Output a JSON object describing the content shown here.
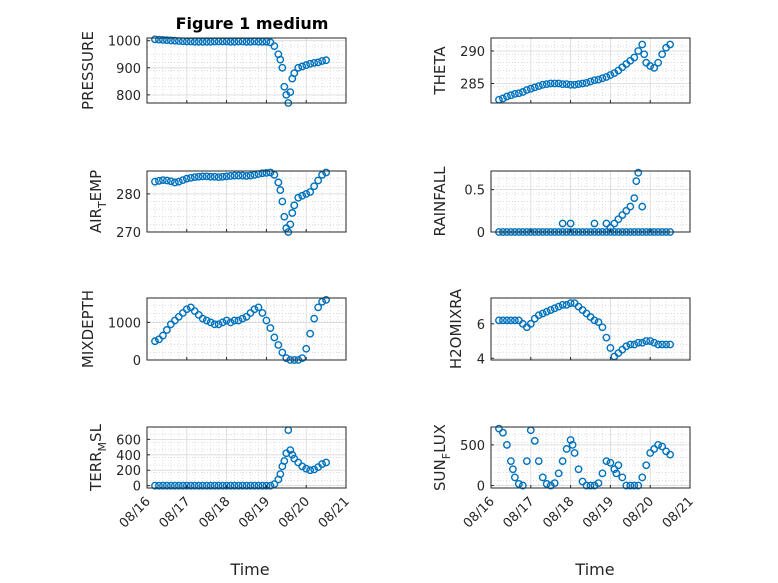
{
  "figure": {
    "title": "Figure 1 medium",
    "xlabel": "Time",
    "xtick_labels": [
      "08/16",
      "08/17",
      "08/18",
      "08/19",
      "08/20",
      "08/21"
    ],
    "marker_color": "#0072BD"
  },
  "chart_data": [
    {
      "type": "scatter",
      "ylabel_main": "PRESSURE",
      "ylabel_sub": "",
      "xlim": [
        0,
        5
      ],
      "ylim": [
        770,
        1010
      ],
      "yticks": [
        800,
        900,
        1000
      ],
      "grid": true,
      "x": [
        0.2,
        0.3,
        0.4,
        0.5,
        0.6,
        0.7,
        0.8,
        0.9,
        1.0,
        1.1,
        1.2,
        1.3,
        1.4,
        1.5,
        1.6,
        1.7,
        1.8,
        1.9,
        2.0,
        2.1,
        2.2,
        2.3,
        2.4,
        2.5,
        2.6,
        2.7,
        2.8,
        2.9,
        3.0,
        3.1,
        3.2,
        3.3,
        3.35,
        3.4,
        3.45,
        3.5,
        3.55,
        3.6,
        3.65,
        3.7,
        3.8,
        3.9,
        4.0,
        4.1,
        4.2,
        4.3,
        4.4,
        4.5
      ],
      "y": [
        1005,
        1004,
        1003,
        1002,
        1001,
        1000,
        999,
        998,
        997,
        997,
        996,
        996,
        996,
        996,
        996,
        997,
        997,
        997,
        997,
        996,
        996,
        997,
        997,
        996,
        996,
        997,
        996,
        996,
        996,
        994,
        980,
        950,
        930,
        900,
        830,
        800,
        770,
        810,
        860,
        880,
        900,
        905,
        910,
        915,
        918,
        920,
        925,
        928
      ]
    },
    {
      "type": "scatter",
      "ylabel_main": "THETA",
      "ylabel_sub": "",
      "xlim": [
        0,
        5
      ],
      "ylim": [
        282,
        292
      ],
      "yticks": [
        285,
        290
      ],
      "grid": true,
      "x": [
        0.2,
        0.3,
        0.4,
        0.5,
        0.6,
        0.7,
        0.8,
        0.9,
        1.0,
        1.1,
        1.2,
        1.3,
        1.4,
        1.5,
        1.6,
        1.7,
        1.8,
        1.9,
        2.0,
        2.1,
        2.2,
        2.3,
        2.4,
        2.5,
        2.6,
        2.7,
        2.8,
        2.9,
        3.0,
        3.1,
        3.2,
        3.3,
        3.4,
        3.5,
        3.6,
        3.7,
        3.8,
        3.85,
        3.9,
        4.0,
        4.1,
        4.2,
        4.3,
        4.4,
        4.5
      ],
      "y": [
        282.5,
        282.7,
        283.0,
        283.2,
        283.4,
        283.5,
        283.7,
        284.0,
        284.2,
        284.4,
        284.6,
        284.8,
        284.9,
        285.0,
        285.0,
        285.0,
        284.9,
        284.9,
        284.8,
        284.8,
        284.9,
        285.0,
        285.1,
        285.3,
        285.5,
        285.6,
        285.8,
        286.0,
        286.3,
        286.6,
        287.0,
        287.5,
        288.0,
        288.5,
        289.0,
        290.0,
        291.0,
        289.5,
        288.2,
        287.7,
        287.4,
        288.2,
        289.5,
        290.5,
        291.0
      ]
    },
    {
      "type": "scatter",
      "ylabel_main": "AIR",
      "ylabel_sub": "T",
      "ylabel_tail": "EMP",
      "xlim": [
        0,
        5
      ],
      "ylim": [
        270,
        286
      ],
      "yticks": [
        270,
        280
      ],
      "grid": true,
      "x": [
        0.2,
        0.3,
        0.4,
        0.5,
        0.6,
        0.7,
        0.8,
        0.9,
        1.0,
        1.1,
        1.2,
        1.3,
        1.4,
        1.5,
        1.6,
        1.7,
        1.8,
        1.9,
        2.0,
        2.1,
        2.2,
        2.3,
        2.4,
        2.5,
        2.6,
        2.7,
        2.8,
        2.9,
        3.0,
        3.1,
        3.2,
        3.3,
        3.35,
        3.4,
        3.45,
        3.5,
        3.55,
        3.6,
        3.65,
        3.7,
        3.8,
        3.9,
        4.0,
        4.1,
        4.2,
        4.3,
        4.4,
        4.5
      ],
      "y": [
        283.2,
        283.4,
        283.6,
        283.5,
        283.3,
        283.0,
        283.2,
        283.6,
        284.0,
        284.2,
        284.4,
        284.5,
        284.6,
        284.6,
        284.5,
        284.5,
        284.4,
        284.5,
        284.6,
        284.7,
        284.8,
        284.8,
        284.8,
        284.7,
        284.8,
        285.0,
        285.2,
        285.4,
        285.5,
        285.6,
        285.0,
        283.0,
        281.0,
        278.0,
        274.0,
        271.0,
        270.0,
        272.0,
        275.0,
        277.0,
        279.0,
        279.5,
        280.0,
        280.5,
        282.0,
        283.5,
        285.0,
        285.6
      ]
    },
    {
      "type": "scatter",
      "ylabel_main": "RAINFALL",
      "ylabel_sub": "",
      "xlim": [
        0,
        5
      ],
      "ylim": [
        0,
        0.72
      ],
      "yticks": [
        0,
        0.5
      ],
      "grid": true,
      "x": [
        0.2,
        0.3,
        0.4,
        0.5,
        0.6,
        0.7,
        0.8,
        0.9,
        1.0,
        1.1,
        1.2,
        1.3,
        1.4,
        1.5,
        1.6,
        1.7,
        1.8,
        1.9,
        2.0,
        2.1,
        2.2,
        2.3,
        2.4,
        2.5,
        2.6,
        2.7,
        2.8,
        2.9,
        3.0,
        3.1,
        3.2,
        3.3,
        3.4,
        3.5,
        3.6,
        3.7,
        3.8,
        3.9,
        4.0,
        4.1,
        4.2,
        4.3,
        4.4,
        4.5,
        1.8,
        2.0,
        2.6,
        2.9,
        3.0,
        3.1,
        3.2,
        3.3,
        3.4,
        3.5,
        3.6,
        3.65,
        3.7,
        3.8
      ],
      "y": [
        0,
        0,
        0,
        0,
        0,
        0,
        0,
        0,
        0,
        0,
        0,
        0,
        0,
        0,
        0,
        0,
        0,
        0,
        0,
        0,
        0,
        0,
        0,
        0,
        0,
        0,
        0,
        0,
        0,
        0,
        0,
        0,
        0,
        0,
        0,
        0,
        0,
        0,
        0,
        0,
        0,
        0,
        0,
        0,
        0.1,
        0.1,
        0.1,
        0.1,
        0.05,
        0.1,
        0.15,
        0.2,
        0.25,
        0.3,
        0.4,
        0.6,
        0.7,
        0.3
      ]
    },
    {
      "type": "scatter",
      "ylabel_main": "MIXDEPTH",
      "ylabel_sub": "",
      "xlim": [
        0,
        5
      ],
      "ylim": [
        0,
        1650
      ],
      "yticks": [
        0,
        1000
      ],
      "grid": true,
      "x": [
        0.2,
        0.3,
        0.4,
        0.5,
        0.6,
        0.7,
        0.8,
        0.9,
        1.0,
        1.1,
        1.2,
        1.3,
        1.4,
        1.5,
        1.6,
        1.7,
        1.8,
        1.9,
        2.0,
        2.1,
        2.2,
        2.3,
        2.4,
        2.5,
        2.6,
        2.7,
        2.8,
        2.9,
        3.0,
        3.1,
        3.2,
        3.3,
        3.4,
        3.5,
        3.6,
        3.7,
        3.8,
        3.9,
        4.0,
        4.1,
        4.2,
        4.3,
        4.4,
        4.5
      ],
      "y": [
        500,
        550,
        650,
        800,
        950,
        1050,
        1150,
        1250,
        1350,
        1400,
        1300,
        1200,
        1100,
        1050,
        1000,
        950,
        950,
        1000,
        1050,
        1000,
        1050,
        1050,
        1100,
        1150,
        1250,
        1350,
        1400,
        1250,
        1050,
        850,
        600,
        400,
        200,
        50,
        0,
        0,
        0,
        50,
        300,
        700,
        1100,
        1400,
        1550,
        1600
      ]
    },
    {
      "type": "scatter",
      "ylabel_main": "H2OMIXRA",
      "ylabel_sub": "",
      "xlim": [
        0,
        5
      ],
      "ylim": [
        3.9,
        7.5
      ],
      "yticks": [
        4,
        6
      ],
      "grid": true,
      "x": [
        0.2,
        0.3,
        0.4,
        0.5,
        0.6,
        0.7,
        0.8,
        0.9,
        1.0,
        1.1,
        1.2,
        1.3,
        1.4,
        1.5,
        1.6,
        1.7,
        1.8,
        1.9,
        2.0,
        2.1,
        2.2,
        2.3,
        2.4,
        2.5,
        2.6,
        2.7,
        2.8,
        2.9,
        3.0,
        3.1,
        3.2,
        3.3,
        3.4,
        3.5,
        3.6,
        3.7,
        3.8,
        3.9,
        4.0,
        4.1,
        4.2,
        4.3,
        4.4,
        4.5
      ],
      "y": [
        6.2,
        6.2,
        6.2,
        6.2,
        6.2,
        6.2,
        6.0,
        5.8,
        6.0,
        6.3,
        6.5,
        6.6,
        6.7,
        6.8,
        6.9,
        7.0,
        7.1,
        7.1,
        7.2,
        7.2,
        7.0,
        6.8,
        6.6,
        6.4,
        6.2,
        6.1,
        5.8,
        5.2,
        4.6,
        4.1,
        4.3,
        4.5,
        4.7,
        4.8,
        4.8,
        4.9,
        4.9,
        5.0,
        5.0,
        4.9,
        4.8,
        4.8,
        4.8,
        4.8
      ]
    },
    {
      "type": "scatter",
      "ylabel_main": "TERR",
      "ylabel_sub": "M",
      "ylabel_tail": "SL",
      "xlim": [
        0,
        5
      ],
      "ylim": [
        -30,
        760
      ],
      "yticks": [
        0,
        200,
        400,
        600
      ],
      "grid": true,
      "x": [
        0.2,
        0.3,
        0.4,
        0.5,
        0.6,
        0.7,
        0.8,
        0.9,
        1.0,
        1.1,
        1.2,
        1.3,
        1.4,
        1.5,
        1.6,
        1.7,
        1.8,
        1.9,
        2.0,
        2.1,
        2.2,
        2.3,
        2.4,
        2.5,
        2.6,
        2.7,
        2.8,
        2.9,
        3.0,
        3.1,
        3.2,
        3.3,
        3.35,
        3.4,
        3.45,
        3.5,
        3.55,
        3.6,
        3.65,
        3.7,
        3.8,
        3.9,
        4.0,
        4.1,
        4.2,
        4.3,
        4.4,
        4.5
      ],
      "y": [
        0,
        0,
        0,
        0,
        0,
        0,
        0,
        0,
        0,
        0,
        0,
        0,
        0,
        0,
        0,
        0,
        0,
        0,
        0,
        0,
        0,
        0,
        0,
        0,
        0,
        0,
        0,
        0,
        0,
        0,
        20,
        80,
        150,
        250,
        320,
        420,
        720,
        460,
        400,
        350,
        300,
        250,
        220,
        200,
        210,
        240,
        280,
        300
      ]
    },
    {
      "type": "scatter",
      "ylabel_main": "SUN",
      "ylabel_sub": "F",
      "ylabel_tail": "LUX",
      "xlim": [
        0,
        5
      ],
      "ylim": [
        -30,
        720
      ],
      "yticks": [
        0,
        500
      ],
      "grid": true,
      "x": [
        0.2,
        0.3,
        0.4,
        0.5,
        0.55,
        0.6,
        0.7,
        0.8,
        0.9,
        1.0,
        1.1,
        1.2,
        1.3,
        1.4,
        1.5,
        1.6,
        1.7,
        1.8,
        1.9,
        2.0,
        2.05,
        2.1,
        2.2,
        2.3,
        2.4,
        2.5,
        2.6,
        2.7,
        2.8,
        2.9,
        3.0,
        3.1,
        3.15,
        3.2,
        3.3,
        3.4,
        3.5,
        3.6,
        3.7,
        3.8,
        3.9,
        4.0,
        4.1,
        4.2,
        4.3,
        4.4,
        4.5
      ],
      "y": [
        700,
        650,
        500,
        300,
        200,
        100,
        20,
        0,
        300,
        680,
        550,
        300,
        100,
        20,
        0,
        30,
        150,
        300,
        450,
        560,
        500,
        400,
        200,
        50,
        0,
        0,
        0,
        30,
        150,
        300,
        280,
        200,
        150,
        250,
        100,
        0,
        0,
        0,
        0,
        100,
        250,
        400,
        450,
        500,
        480,
        420,
        380
      ]
    }
  ]
}
